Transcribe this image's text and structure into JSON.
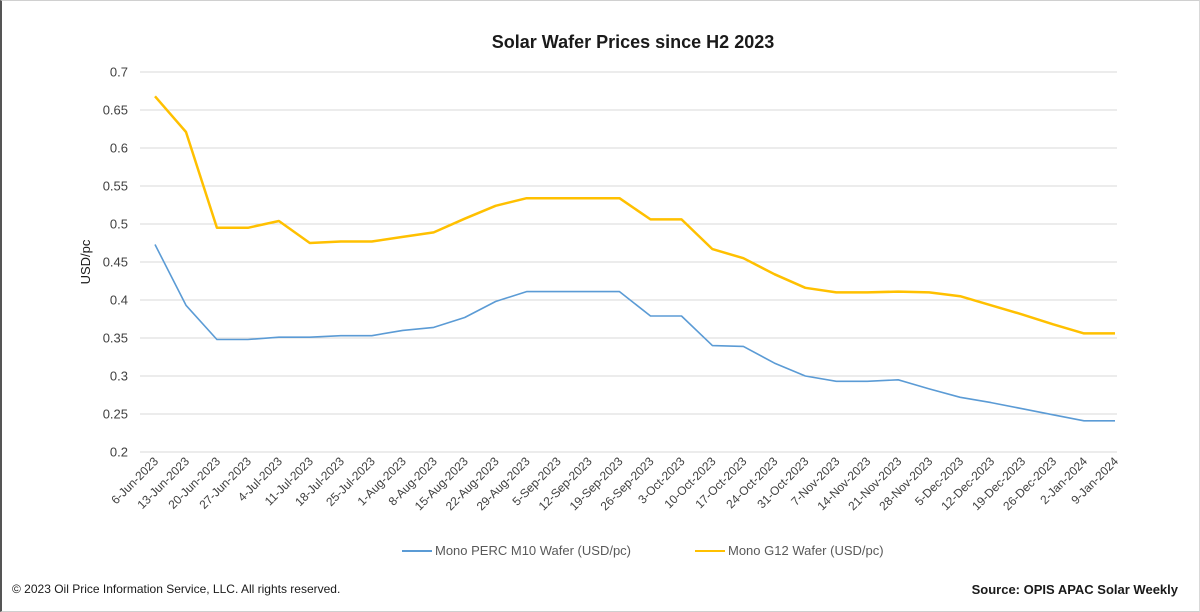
{
  "chart_data": {
    "type": "line",
    "title": "Solar Wafer Prices since H2 2023",
    "xlabel": "",
    "ylabel": "USD/pc",
    "ylim": [
      0.2,
      0.7
    ],
    "yticks": [
      "0.2",
      "0.25",
      "0.3",
      "0.35",
      "0.4",
      "0.45",
      "0.5",
      "0.55",
      "0.6",
      "0.65",
      "0.7"
    ],
    "grid": true,
    "legend_position": "bottom",
    "categories": [
      "6-Jun-2023",
      "13-Jun-2023",
      "20-Jun-2023",
      "27-Jun-2023",
      "4-Jul-2023",
      "11-Jul-2023",
      "18-Jul-2023",
      "25-Jul-2023",
      "1-Aug-2023",
      "8-Aug-2023",
      "15-Aug-2023",
      "22-Aug-2023",
      "29-Aug-2023",
      "5-Sep-2023",
      "12-Sep-2023",
      "19-Sep-2023",
      "26-Sep-2023",
      "3-Oct-2023",
      "10-Oct-2023",
      "17-Oct-2023",
      "24-Oct-2023",
      "31-Oct-2023",
      "7-Nov-2023",
      "14-Nov-2023",
      "21-Nov-2023",
      "28-Nov-2023",
      "5-Dec-2023",
      "12-Dec-2023",
      "19-Dec-2023",
      "26-Dec-2023",
      "2-Jan-2024",
      "9-Jan-2024"
    ],
    "series": [
      {
        "name": "Mono PERC M10 Wafer (USD/pc)",
        "color": "#5b9bd5",
        "values": [
          0.473,
          0.393,
          0.348,
          0.348,
          0.351,
          0.351,
          0.353,
          0.353,
          0.36,
          0.364,
          0.377,
          0.398,
          0.411,
          0.411,
          0.411,
          0.411,
          0.379,
          0.379,
          0.34,
          0.339,
          0.317,
          0.3,
          0.293,
          0.293,
          0.295,
          0.283,
          0.272,
          0.265,
          0.257,
          0.249,
          0.241,
          0.241
        ]
      },
      {
        "name": "Mono G12 Wafer (USD/pc)",
        "color": "#ffc000",
        "values": [
          0.668,
          0.621,
          0.495,
          0.495,
          0.504,
          0.475,
          0.477,
          0.477,
          0.483,
          0.489,
          0.507,
          0.524,
          0.534,
          0.534,
          0.534,
          0.534,
          0.506,
          0.506,
          0.467,
          0.455,
          0.434,
          0.416,
          0.41,
          0.41,
          0.411,
          0.41,
          0.405,
          0.393,
          0.381,
          0.368,
          0.356,
          0.356
        ]
      }
    ]
  },
  "footer": {
    "copyright": "© 2023 Oil Price Information Service, LLC. All rights reserved.",
    "source": "Source: OPIS APAC Solar Weekly"
  }
}
